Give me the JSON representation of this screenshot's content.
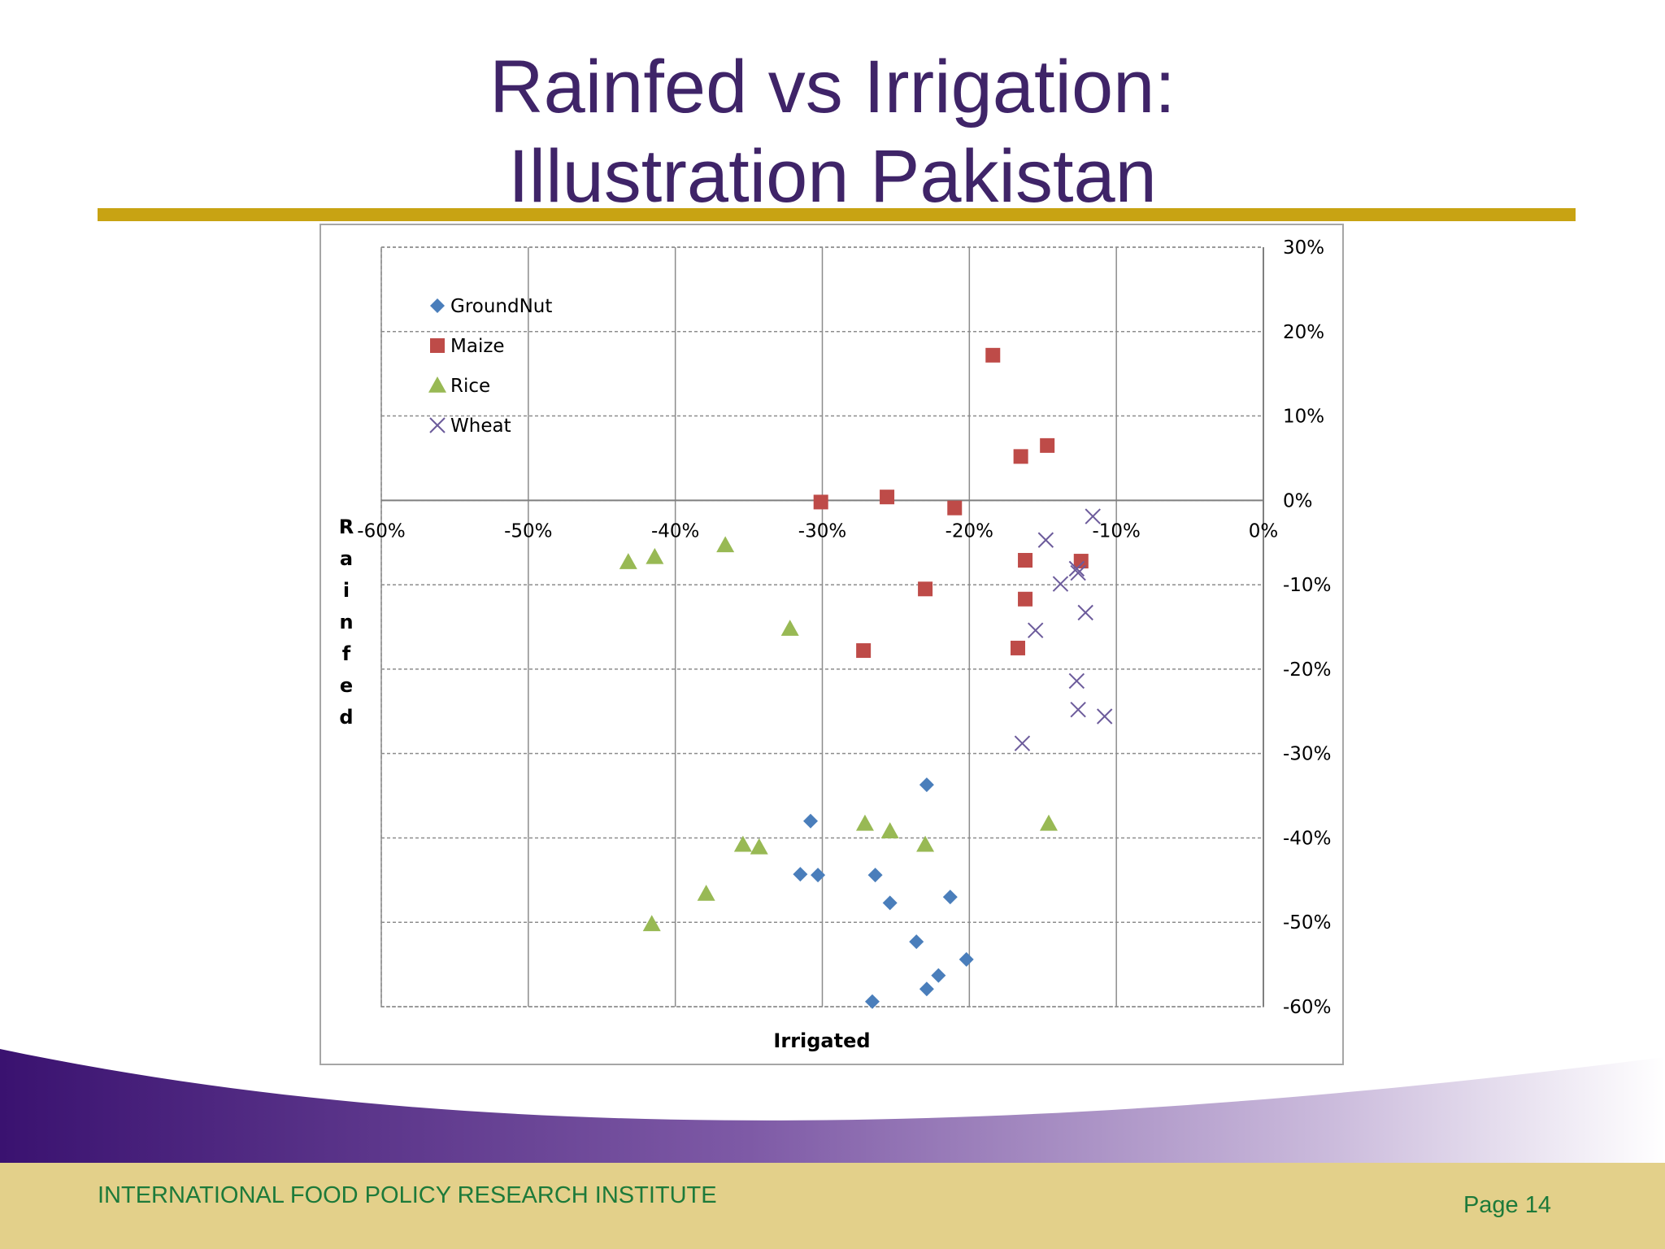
{
  "slide": {
    "title_line1": "Rainfed vs Irrigation:",
    "title_line2": "Illustration Pakistan",
    "footer_org": "INTERNATIONAL FOOD POLICY RESEARCH INSTITUTE",
    "page_label": "Page 14"
  },
  "colors": {
    "title": "#3f2468",
    "gold_rule": "#c8a313",
    "footer_band": "#e3d08a",
    "footer_text": "#1d7a3a",
    "groundnut": "#4a7ebb",
    "maize": "#be4b48",
    "rice": "#98b954",
    "wheat": "#6c5b9b"
  },
  "chart_data": {
    "type": "scatter",
    "title": "",
    "xlabel": "Irrigated",
    "ylabel": "Rainfed",
    "xlim": [
      -0.6,
      0
    ],
    "ylim": [
      -0.6,
      0.3
    ],
    "x_ticks": [
      -0.6,
      -0.5,
      -0.4,
      -0.3,
      -0.2,
      -0.1,
      0
    ],
    "y_ticks": [
      0.3,
      0.2,
      0.1,
      0,
      -0.1,
      -0.2,
      -0.3,
      -0.4,
      -0.5,
      -0.6
    ],
    "x_tick_labels": [
      "-60%",
      "-50%",
      "-40%",
      "-30%",
      "-20%",
      "-10%",
      "0%"
    ],
    "y_tick_labels": [
      "30%",
      "20%",
      "10%",
      "0%",
      "-10%",
      "-20%",
      "-30%",
      "-40%",
      "-50%",
      "-60%"
    ],
    "grid": true,
    "legend_position": "top-left",
    "series": [
      {
        "name": "GroundNut",
        "marker": "diamond",
        "color": "#4a7ebb",
        "points": [
          [
            -0.229,
            -0.337
          ],
          [
            -0.308,
            -0.38
          ],
          [
            -0.315,
            -0.443
          ],
          [
            -0.303,
            -0.444
          ],
          [
            -0.264,
            -0.444
          ],
          [
            -0.254,
            -0.477
          ],
          [
            -0.213,
            -0.47
          ],
          [
            -0.236,
            -0.523
          ],
          [
            -0.202,
            -0.544
          ],
          [
            -0.221,
            -0.563
          ],
          [
            -0.229,
            -0.579
          ],
          [
            -0.266,
            -0.594
          ]
        ]
      },
      {
        "name": "Maize",
        "marker": "square",
        "color": "#be4b48",
        "points": [
          [
            -0.184,
            0.172
          ],
          [
            -0.147,
            0.065
          ],
          [
            -0.165,
            0.052
          ],
          [
            -0.301,
            -0.002
          ],
          [
            -0.256,
            0.004
          ],
          [
            -0.21,
            -0.009
          ],
          [
            -0.162,
            -0.071
          ],
          [
            -0.124,
            -0.072
          ],
          [
            -0.23,
            -0.105
          ],
          [
            -0.162,
            -0.117
          ],
          [
            -0.272,
            -0.178
          ],
          [
            -0.167,
            -0.175
          ]
        ]
      },
      {
        "name": "Rice",
        "marker": "triangle",
        "color": "#98b954",
        "points": [
          [
            -0.432,
            -0.073
          ],
          [
            -0.414,
            -0.067
          ],
          [
            -0.366,
            -0.053
          ],
          [
            -0.322,
            -0.152
          ],
          [
            -0.271,
            -0.383
          ],
          [
            -0.254,
            -0.392
          ],
          [
            -0.23,
            -0.408
          ],
          [
            -0.146,
            -0.383
          ],
          [
            -0.354,
            -0.408
          ],
          [
            -0.343,
            -0.411
          ],
          [
            -0.379,
            -0.466
          ],
          [
            -0.416,
            -0.502
          ]
        ]
      },
      {
        "name": "Wheat",
        "marker": "x",
        "color": "#6c5b9b",
        "points": [
          [
            -0.116,
            -0.019
          ],
          [
            -0.148,
            -0.047
          ],
          [
            -0.127,
            -0.081
          ],
          [
            -0.126,
            -0.086
          ],
          [
            -0.138,
            -0.099
          ],
          [
            -0.121,
            -0.133
          ],
          [
            -0.155,
            -0.154
          ],
          [
            -0.127,
            -0.214
          ],
          [
            -0.126,
            -0.248
          ],
          [
            -0.108,
            -0.256
          ],
          [
            -0.164,
            -0.288
          ]
        ]
      }
    ]
  }
}
